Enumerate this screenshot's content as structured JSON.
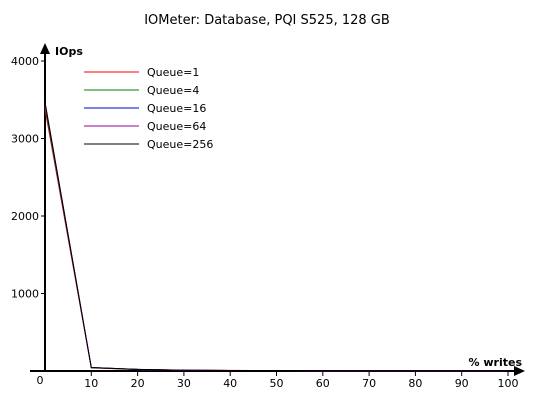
{
  "chart_data": {
    "type": "line",
    "title": "IOMeter: Database, PQI S525, 128 GB",
    "xlabel": "% writes",
    "ylabel": "IOps",
    "xlim": [
      0,
      100
    ],
    "ylim": [
      0,
      4000
    ],
    "x_ticks": [
      10,
      20,
      30,
      40,
      50,
      60,
      70,
      80,
      90,
      100
    ],
    "y_ticks": [
      1000,
      2000,
      3000,
      4000
    ],
    "origin_label": "0",
    "grid": false,
    "legend_position": "top-left",
    "x": [
      0,
      10,
      20,
      30,
      40,
      50,
      60,
      70,
      80,
      90,
      100
    ],
    "series": [
      {
        "name": "Queue=1",
        "color": "#ff0000",
        "values": [
          3380,
          40,
          20,
          12,
          8,
          6,
          5,
          4,
          4,
          4,
          5
        ]
      },
      {
        "name": "Queue=4",
        "color": "#008000",
        "values": [
          3420,
          42,
          18,
          10,
          7,
          6,
          5,
          4,
          4,
          4,
          5
        ]
      },
      {
        "name": "Queue=16",
        "color": "#0000cc",
        "values": [
          3450,
          44,
          20,
          10,
          7,
          6,
          5,
          4,
          4,
          4,
          5
        ]
      },
      {
        "name": "Queue=64",
        "color": "#990099",
        "values": [
          3460,
          45,
          20,
          10,
          7,
          6,
          5,
          4,
          4,
          4,
          5
        ]
      },
      {
        "name": "Queue=256",
        "color": "#000000",
        "values": [
          3470,
          45,
          20,
          10,
          7,
          6,
          5,
          4,
          4,
          4,
          5
        ]
      }
    ]
  }
}
